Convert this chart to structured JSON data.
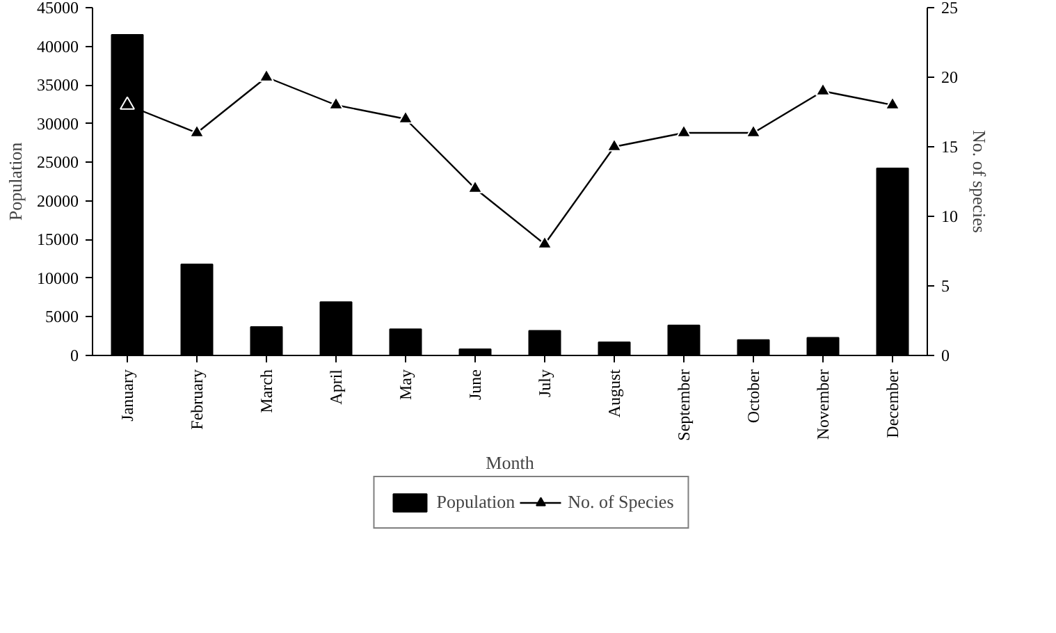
{
  "chart_data": {
    "type": "bar",
    "xlabel": "Month",
    "ylabel": "Population",
    "y2label": "No. of species",
    "categories": [
      "January",
      "February",
      "March",
      "April",
      "May",
      "June",
      "July",
      "August",
      "September",
      "October",
      "November",
      "December"
    ],
    "series": [
      {
        "name": "Population",
        "color": "#000000",
        "values": [
          41500,
          11800,
          3700,
          6900,
          3400,
          800,
          3200,
          1700,
          3900,
          2000,
          2300,
          24200
        ]
      },
      {
        "name": "No. of Species",
        "type": "line",
        "axis": "y2",
        "color": "#000000",
        "marker": "triangle",
        "values": [
          18,
          16,
          20,
          18,
          17,
          12,
          8,
          15,
          16,
          16,
          19,
          18
        ]
      }
    ],
    "ylim": [
      0,
      45000
    ],
    "yticks": [
      0,
      5000,
      10000,
      15000,
      20000,
      25000,
      30000,
      35000,
      40000,
      45000
    ],
    "y2lim": [
      0,
      25
    ],
    "y2ticks": [
      0,
      5,
      10,
      15,
      20,
      25
    ],
    "grid": false,
    "legend": "bottom"
  }
}
